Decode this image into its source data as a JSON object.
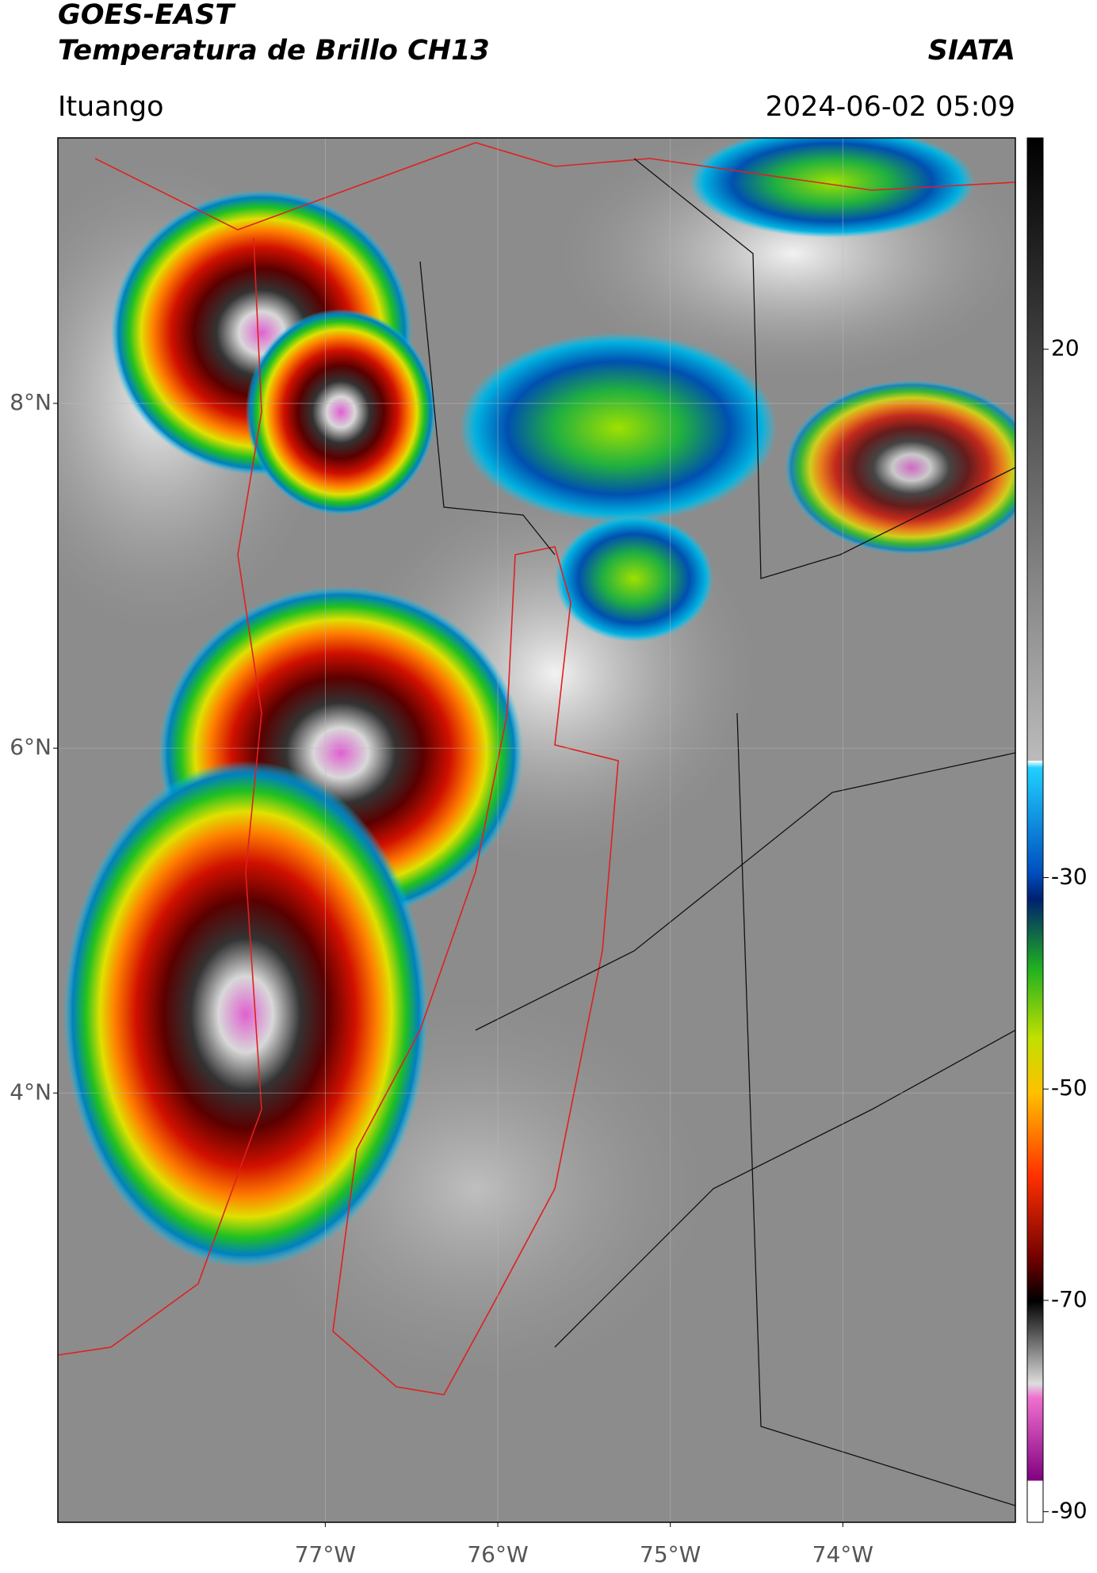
{
  "header": {
    "title": "GOES-EAST",
    "subtitle": "Temperatura de Brillo CH13",
    "source": "SIATA",
    "location": "Ituango",
    "datetime": "2024-06-02 05:09"
  },
  "map": {
    "lat_lim": [
      1.51,
      9.54
    ],
    "lon_lim": [
      -78.55,
      -73.0
    ],
    "lat_ticks": [
      {
        "value": 8,
        "label": "8°N"
      },
      {
        "value": 6,
        "label": "6°N"
      },
      {
        "value": 4,
        "label": "4°N"
      }
    ],
    "lon_ticks": [
      {
        "value": -77,
        "label": "77°W"
      },
      {
        "value": -76,
        "label": "76°W"
      },
      {
        "value": -75,
        "label": "75°W"
      },
      {
        "value": -74,
        "label": "74°W"
      }
    ],
    "grid": true
  },
  "colorbar": {
    "lim": [
      -91,
      40
    ],
    "ticks": [
      20,
      -30,
      -50,
      -70,
      -90
    ]
  }
}
